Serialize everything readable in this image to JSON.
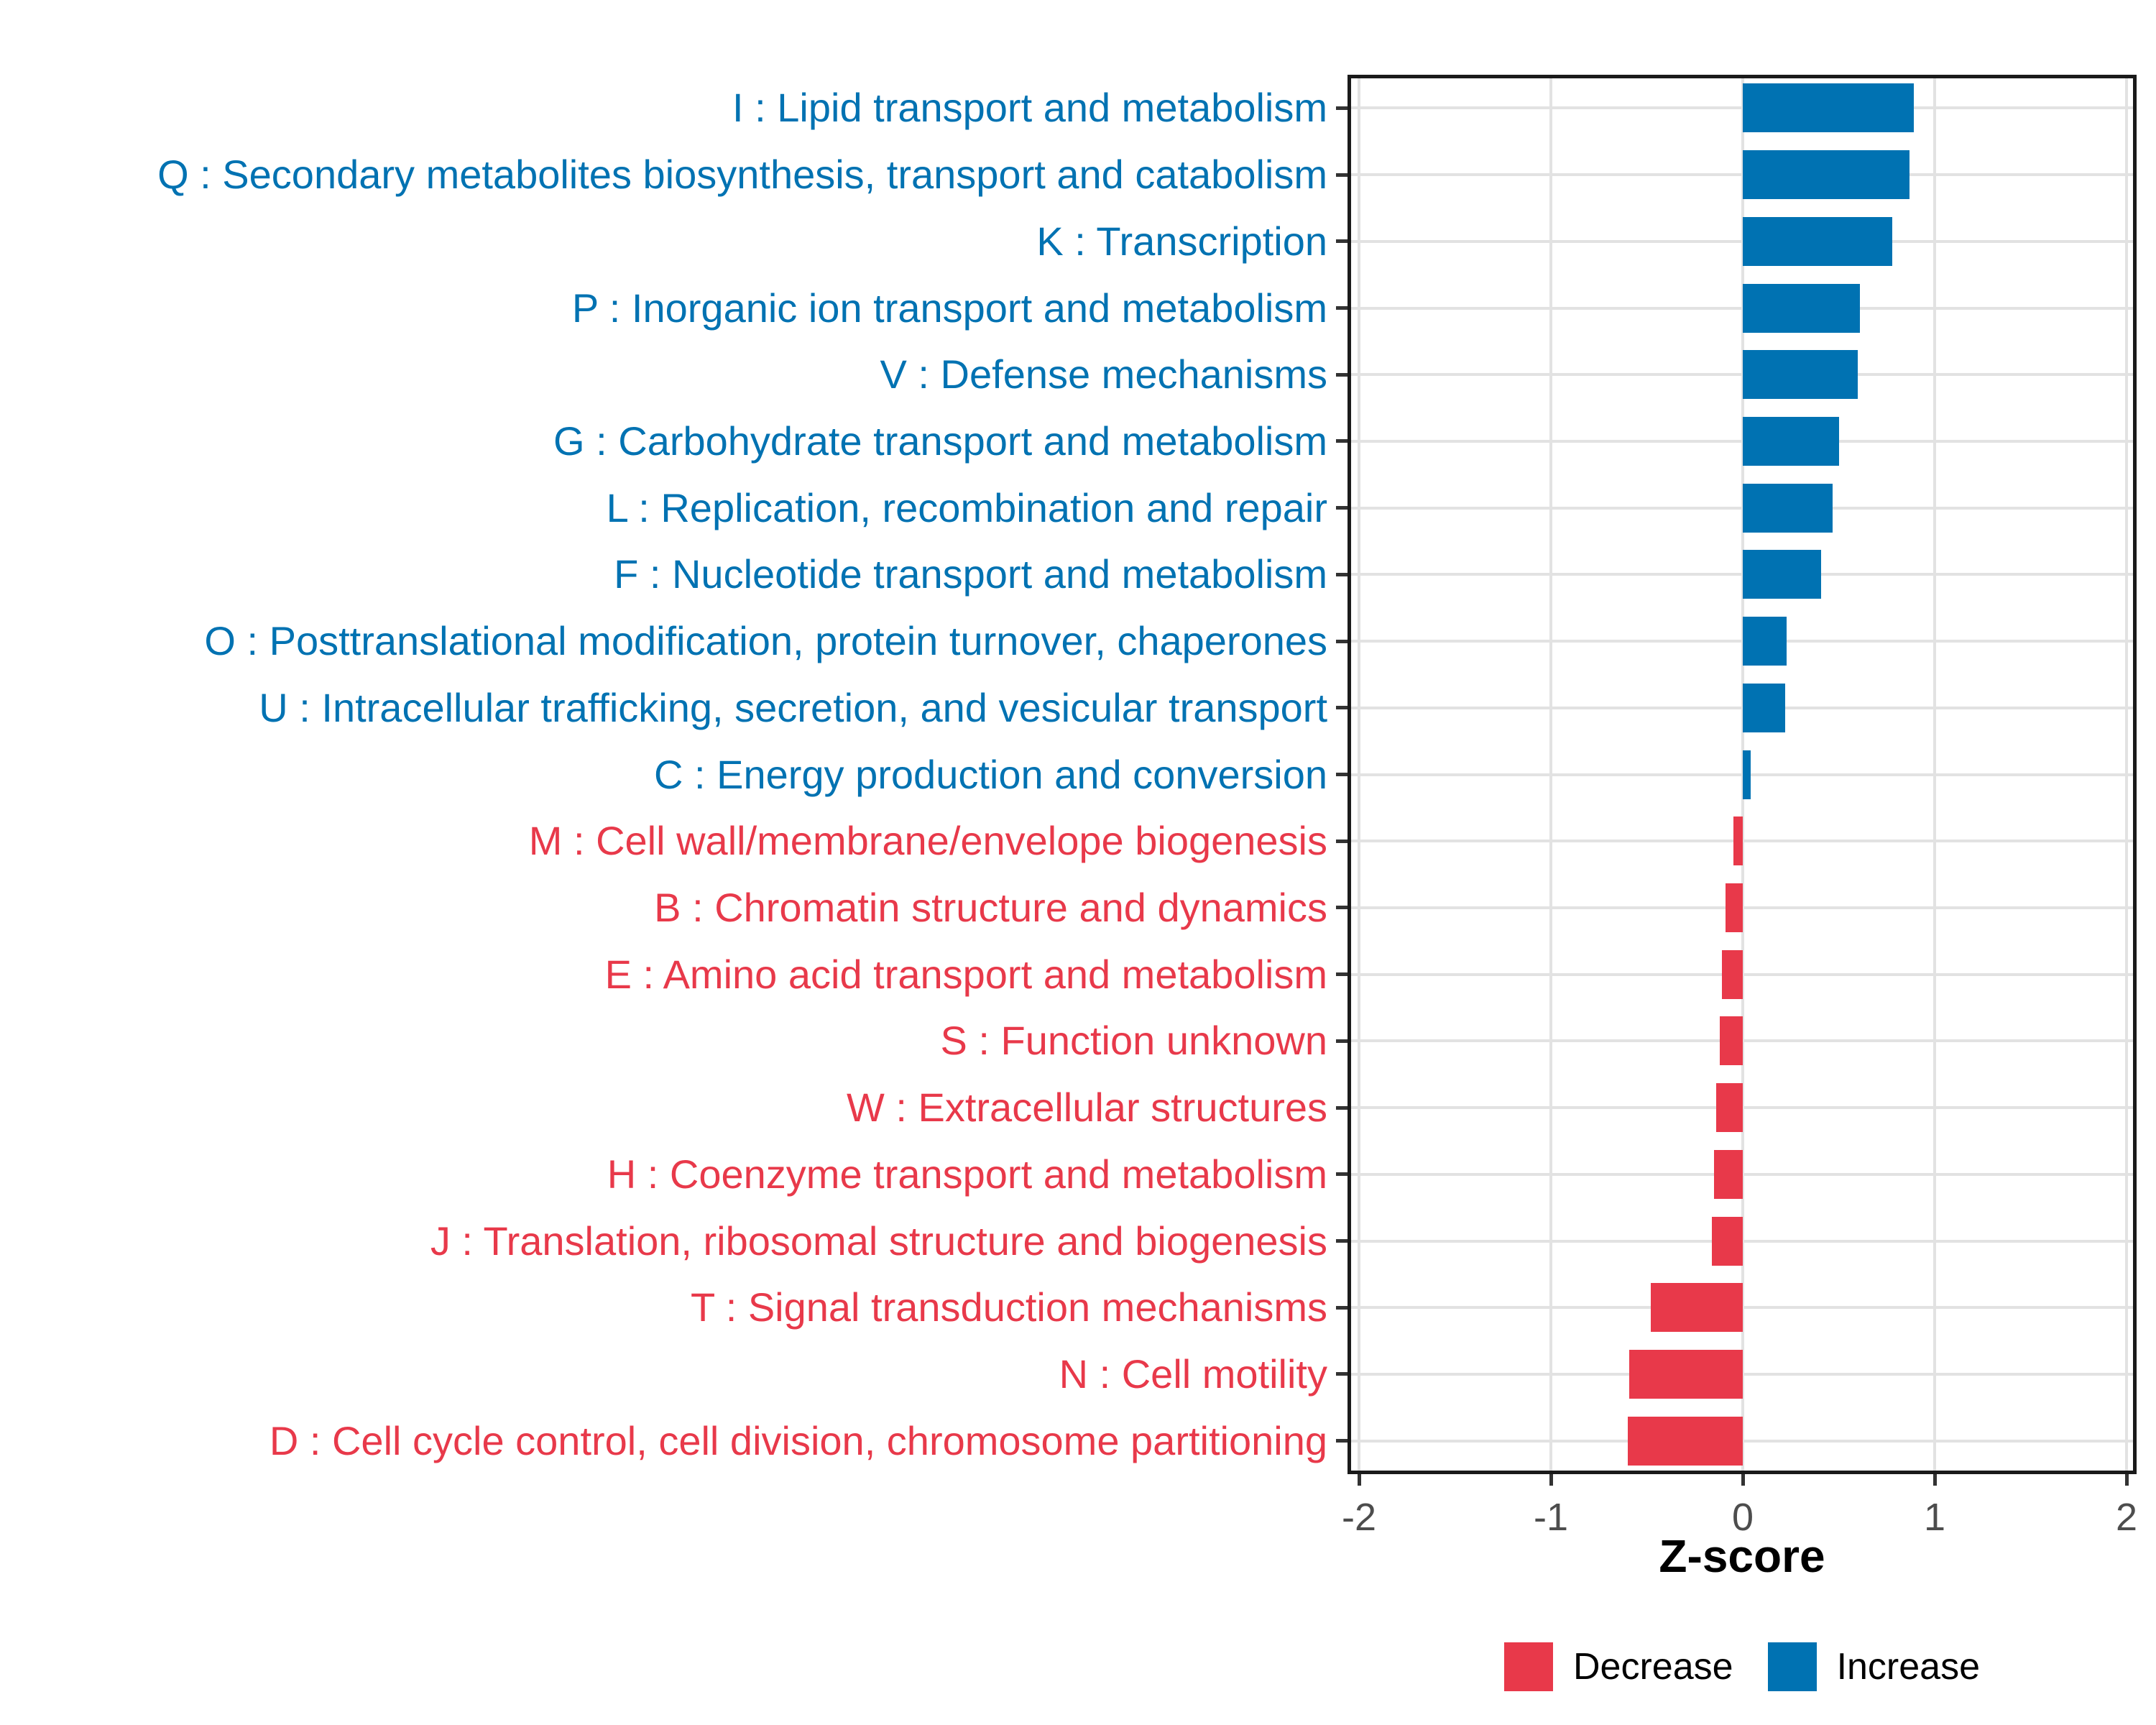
{
  "chart_data": {
    "type": "bar",
    "orientation": "horizontal",
    "title": "",
    "xlabel": "Z-score",
    "ylabel": "",
    "xlim": [
      -2.06,
      2.05
    ],
    "x_ticks": [
      -2,
      -1,
      0,
      1,
      2
    ],
    "x_tick_labels": [
      "-2",
      "-1",
      "0",
      "1",
      "2"
    ],
    "grid": "major-only",
    "legend_position": "bottom-right",
    "categories": [
      "I : Lipid transport and metabolism",
      "Q : Secondary metabolites biosynthesis, transport and catabolism",
      "K : Transcription",
      "P : Inorganic ion transport and metabolism",
      "V : Defense mechanisms",
      "G : Carbohydrate transport and metabolism",
      "L : Replication, recombination and repair",
      "F : Nucleotide transport and metabolism",
      "O : Posttranslational modification, protein turnover, chaperones",
      "U : Intracellular trafficking, secretion, and vesicular transport",
      "C : Energy production and conversion",
      "M : Cell wall/membrane/envelope biogenesis",
      "B : Chromatin structure and dynamics",
      "E : Amino acid transport and metabolism",
      "S : Function unknown",
      "W : Extracellular structures",
      "H : Coenzyme transport and metabolism",
      "J : Translation, ribosomal structure and biogenesis",
      "T : Signal transduction mechanisms",
      "N : Cell motility",
      "D : Cell cycle control, cell division, chromosome partitioning"
    ],
    "values": [
      0.89,
      0.87,
      0.78,
      0.61,
      0.6,
      0.5,
      0.47,
      0.41,
      0.23,
      0.22,
      0.04,
      -0.05,
      -0.09,
      -0.11,
      -0.12,
      -0.14,
      -0.15,
      -0.16,
      -0.48,
      -0.59,
      -0.6
    ],
    "directions": [
      "Increase",
      "Increase",
      "Increase",
      "Increase",
      "Increase",
      "Increase",
      "Increase",
      "Increase",
      "Increase",
      "Increase",
      "Increase",
      "Decrease",
      "Decrease",
      "Decrease",
      "Decrease",
      "Decrease",
      "Decrease",
      "Decrease",
      "Decrease",
      "Decrease",
      "Decrease"
    ],
    "legend": [
      {
        "label": "Decrease",
        "color": "#E8394A"
      },
      {
        "label": "Increase",
        "color": "#0072B2"
      }
    ],
    "colors": {
      "increase": "#0072B2",
      "decrease": "#E8394A",
      "axis_tick_text": "#4D4D4D",
      "axis_title": "#000000",
      "gridline": "#E2E2E2",
      "panel_border": "#1A1A1A",
      "tick_mark": "#333333",
      "background": "#FFFFFF"
    }
  }
}
